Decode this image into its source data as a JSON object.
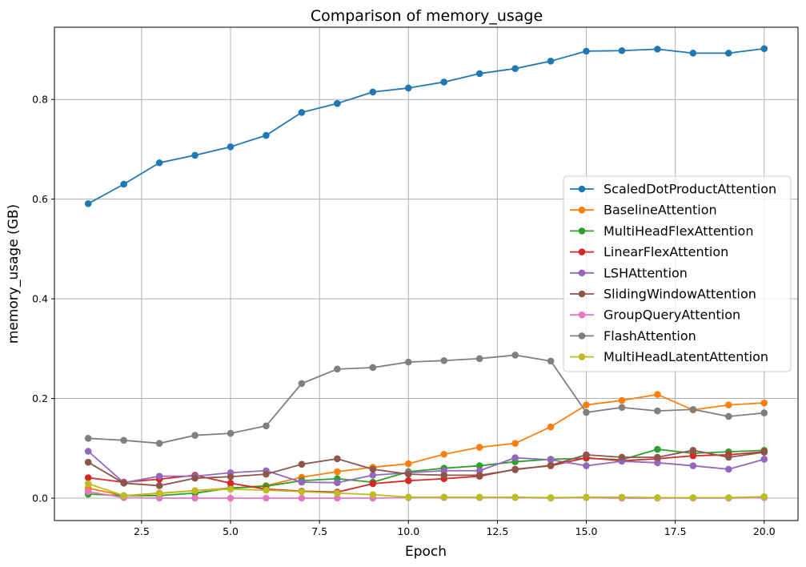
{
  "chart_data": {
    "type": "line",
    "title": "Comparison of memory_usage",
    "xlabel": "Epoch",
    "ylabel": "memory_usage (GB)",
    "xlim": [
      0.05,
      20.95
    ],
    "ylim": [
      -0.045,
      0.945
    ],
    "xticks": [
      2.5,
      5.0,
      7.5,
      10.0,
      12.5,
      15.0,
      17.5,
      20.0
    ],
    "xtick_labels": [
      "2.5",
      "5.0",
      "7.5",
      "10.0",
      "12.5",
      "15.0",
      "17.5",
      "20.0"
    ],
    "yticks": [
      0.0,
      0.2,
      0.4,
      0.6,
      0.8
    ],
    "ytick_labels": [
      "0.0",
      "0.2",
      "0.4",
      "0.6",
      "0.8"
    ],
    "grid": true,
    "legend_position": "center-right",
    "x": [
      1,
      2,
      3,
      4,
      5,
      6,
      7,
      8,
      9,
      10,
      11,
      12,
      13,
      14,
      15,
      16,
      17,
      18,
      19,
      20
    ],
    "series": [
      {
        "name": "ScaledDotProductAttention",
        "color": "#1f77b4",
        "values": [
          0.591,
          0.63,
          0.673,
          0.688,
          0.705,
          0.728,
          0.774,
          0.792,
          0.815,
          0.823,
          0.835,
          0.852,
          0.862,
          0.877,
          0.897,
          0.898,
          0.901,
          0.893,
          0.893,
          0.902
        ]
      },
      {
        "name": "BaselineAttention",
        "color": "#ff7f0e",
        "values": [
          0.02,
          0.005,
          0.01,
          0.015,
          0.02,
          0.025,
          0.042,
          0.053,
          0.062,
          0.069,
          0.088,
          0.102,
          0.11,
          0.143,
          0.187,
          0.196,
          0.208,
          0.177,
          0.187,
          0.191
        ]
      },
      {
        "name": "MultiHeadFlexAttention",
        "color": "#2ca02c",
        "values": [
          0.008,
          0.005,
          0.005,
          0.01,
          0.02,
          0.024,
          0.035,
          0.039,
          0.032,
          0.053,
          0.06,
          0.065,
          0.073,
          0.078,
          0.08,
          0.077,
          0.098,
          0.09,
          0.093,
          0.096
        ]
      },
      {
        "name": "LinearFlexAttention",
        "color": "#d62728",
        "values": [
          0.041,
          0.032,
          0.038,
          0.046,
          0.03,
          0.018,
          0.014,
          0.012,
          0.029,
          0.035,
          0.039,
          0.044,
          0.058,
          0.065,
          0.081,
          0.075,
          0.079,
          0.085,
          0.087,
          0.093
        ]
      },
      {
        "name": "LSHAttention",
        "color": "#9467bd",
        "values": [
          0.094,
          0.031,
          0.044,
          0.044,
          0.051,
          0.055,
          0.032,
          0.031,
          0.046,
          0.051,
          0.055,
          0.055,
          0.081,
          0.077,
          0.065,
          0.074,
          0.071,
          0.065,
          0.058,
          0.078
        ]
      },
      {
        "name": "SlidingWindowAttention",
        "color": "#8c564b",
        "values": [
          0.072,
          0.03,
          0.025,
          0.04,
          0.043,
          0.048,
          0.068,
          0.079,
          0.058,
          0.048,
          0.046,
          0.046,
          0.057,
          0.066,
          0.087,
          0.082,
          0.082,
          0.096,
          0.082,
          0.092
        ]
      },
      {
        "name": "GroupQueryAttention",
        "color": "#e377c2",
        "values": [
          0.013,
          0.001,
          0.0,
          0.0,
          0.0,
          0.0,
          0.0,
          0.0,
          0.0,
          0.001,
          0.001,
          0.001,
          0.001,
          0.0,
          0.001,
          0.0,
          0.0,
          0.0,
          0.0,
          0.001
        ]
      },
      {
        "name": "FlashAttention",
        "color": "#7f7f7f",
        "values": [
          0.12,
          0.116,
          0.11,
          0.126,
          0.13,
          0.145,
          0.23,
          0.259,
          0.262,
          0.273,
          0.276,
          0.28,
          0.287,
          0.275,
          0.172,
          0.182,
          0.175,
          0.178,
          0.164,
          0.171
        ]
      },
      {
        "name": "MultiHeadLatentAttention",
        "color": "#bcbd22",
        "values": [
          0.029,
          0.005,
          0.009,
          0.015,
          0.018,
          0.016,
          0.013,
          0.01,
          0.007,
          0.002,
          0.002,
          0.002,
          0.002,
          0.001,
          0.002,
          0.002,
          0.001,
          0.001,
          0.001,
          0.003
        ]
      }
    ]
  }
}
